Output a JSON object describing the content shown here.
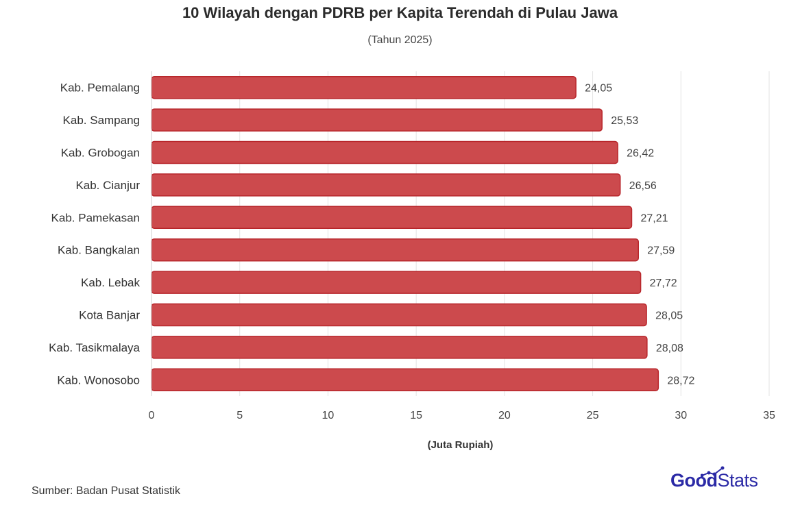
{
  "chart_data": {
    "type": "bar",
    "orientation": "horizontal",
    "title": "10 Wilayah dengan PDRB per Kapita Terendah di Pulau Jawa",
    "subtitle": "(Tahun 2025)",
    "xlabel": "(Juta Rupiah)",
    "categories": [
      "Kab. Pemalang",
      "Kab. Sampang",
      "Kab. Grobogan",
      "Kab. Cianjur",
      "Kab. Pamekasan",
      "Kab. Bangkalan",
      "Kab. Lebak",
      "Kota Banjar",
      "Kab. Tasikmalaya",
      "Kab. Wonosobo"
    ],
    "values": [
      24.05,
      25.53,
      26.42,
      26.56,
      27.21,
      27.59,
      27.72,
      28.05,
      28.08,
      28.72
    ],
    "value_labels": [
      "24,05",
      "25,53",
      "26,42",
      "26,56",
      "27,21",
      "27,59",
      "27,72",
      "28,05",
      "28,08",
      "28,72"
    ],
    "xlim": [
      0,
      35
    ],
    "xticks": [
      0,
      5,
      10,
      15,
      20,
      25,
      30,
      35
    ],
    "grid": "vertical",
    "bar_color": "#cc4a4d",
    "bar_border_color": "#b8262b"
  },
  "footer": {
    "source": "Sumber: Badan Pusat Statistik",
    "logo_good": "Good",
    "logo_stats": "Stats",
    "logo_color": "#2b2aa6"
  }
}
